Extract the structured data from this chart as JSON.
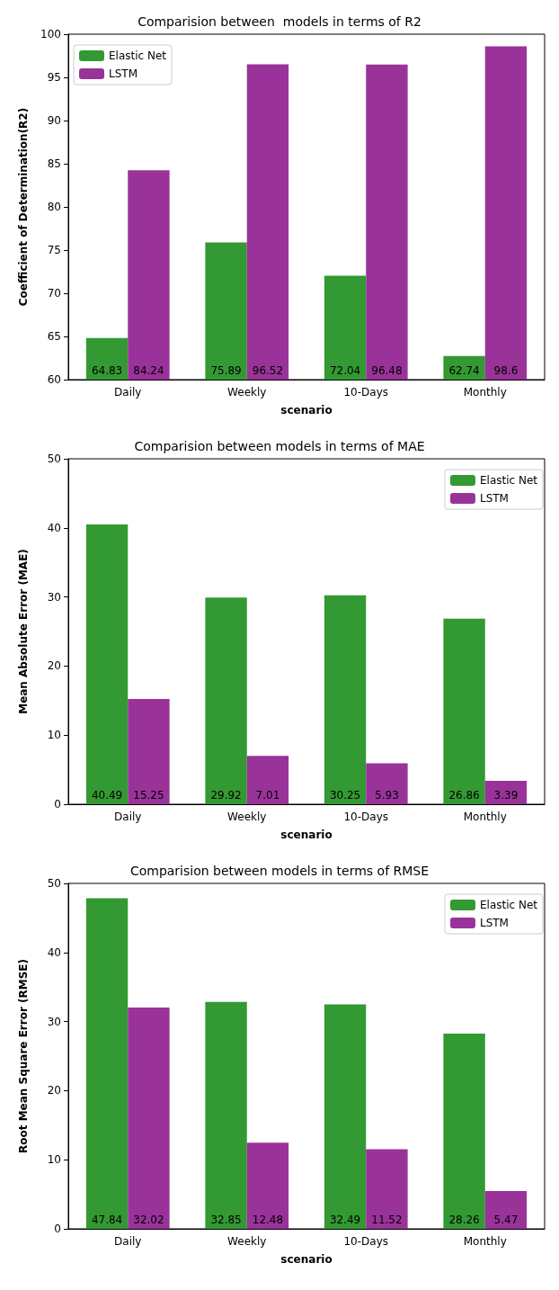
{
  "chart_data": [
    {
      "type": "bar",
      "title": "Comparision between  models in terms of R2",
      "xlabel": "scenario",
      "ylabel": "Coefficient of Determination(R2)",
      "categories": [
        "Daily",
        "Weekly",
        "10-Days",
        "Monthly"
      ],
      "series": [
        {
          "name": "Elastic Net",
          "color": "#339933",
          "values": [
            64.83,
            75.89,
            72.04,
            62.74
          ]
        },
        {
          "name": "LSTM",
          "color": "#993399",
          "values": [
            84.24,
            96.52,
            96.48,
            98.6
          ]
        }
      ],
      "ylim": [
        60,
        100
      ],
      "yticks": [
        60,
        65,
        70,
        75,
        80,
        85,
        90,
        95,
        100
      ],
      "data_labels": true,
      "legend": "top left",
      "grid": false
    },
    {
      "type": "bar",
      "title": "Comparision between models in terms of MAE",
      "xlabel": "scenario",
      "ylabel": "Mean Absolute Error (MAE)",
      "categories": [
        "Daily",
        "Weekly",
        "10-Days",
        "Monthly"
      ],
      "series": [
        {
          "name": "Elastic Net",
          "color": "#339933",
          "values": [
            40.49,
            29.92,
            30.25,
            26.86
          ]
        },
        {
          "name": "LSTM",
          "color": "#993399",
          "values": [
            15.25,
            7.01,
            5.93,
            3.39
          ]
        }
      ],
      "ylim": [
        0,
        50
      ],
      "yticks": [
        0,
        10,
        20,
        30,
        40,
        50
      ],
      "data_labels": true,
      "legend": "top right",
      "grid": false
    },
    {
      "type": "bar",
      "title": "Comparision between models in terms of RMSE",
      "xlabel": "scenario",
      "ylabel": "Root Mean Square Error (RMSE)",
      "categories": [
        "Daily",
        "Weekly",
        "10-Days",
        "Monthly"
      ],
      "series": [
        {
          "name": "Elastic Net",
          "color": "#339933",
          "values": [
            47.84,
            32.85,
            32.49,
            28.26
          ]
        },
        {
          "name": "LSTM",
          "color": "#993399",
          "values": [
            32.02,
            12.48,
            11.52,
            5.47
          ]
        }
      ],
      "ylim": [
        0,
        50
      ],
      "yticks": [
        0,
        10,
        20,
        30,
        40,
        50
      ],
      "data_labels": true,
      "legend": "top right",
      "grid": false
    }
  ]
}
